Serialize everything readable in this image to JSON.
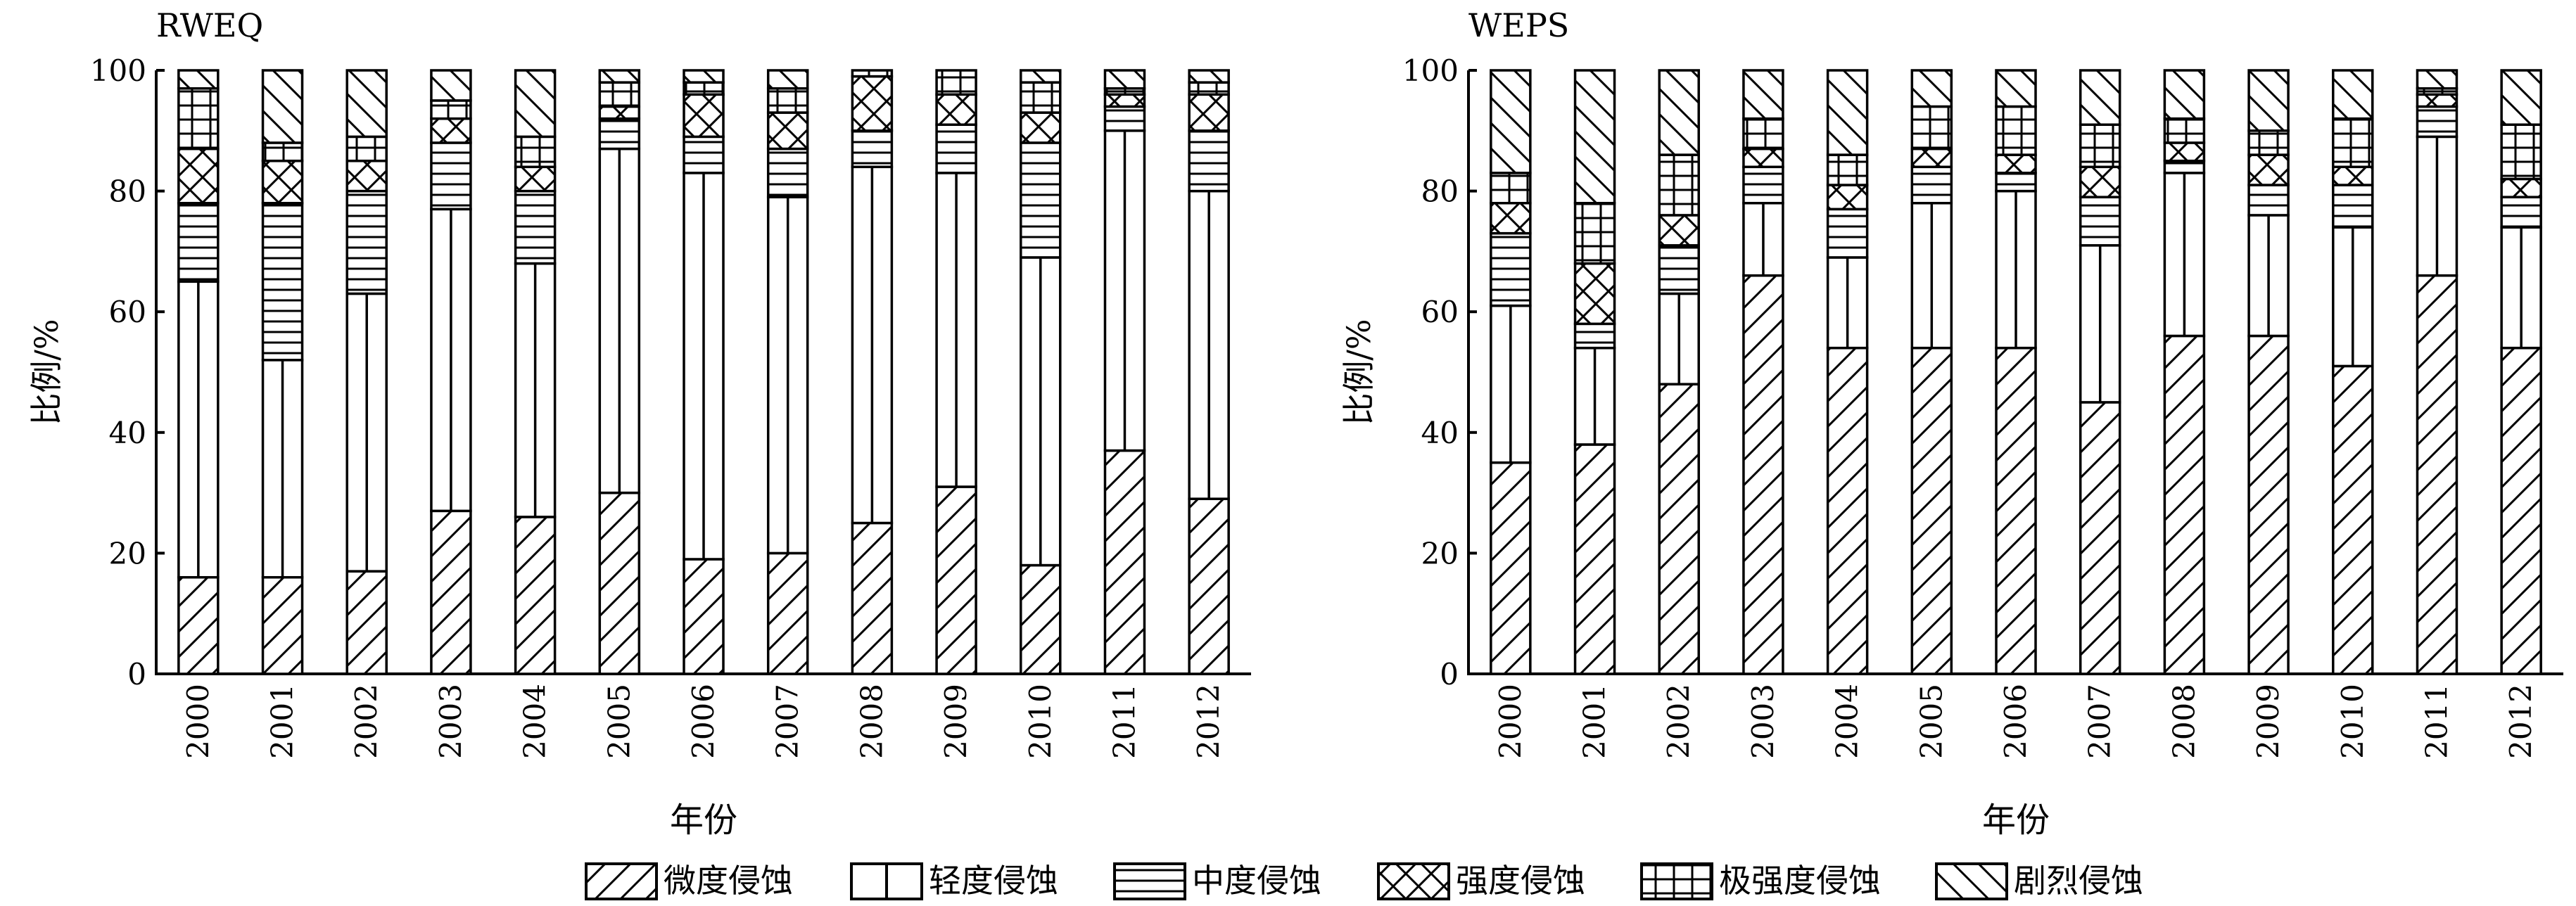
{
  "categories_note": "",
  "legend_entries": [
    {
      "name": "微度侵蚀",
      "pattern": "diag-fwd"
    },
    {
      "name": "轻度侵蚀",
      "pattern": "vline"
    },
    {
      "name": "中度侵蚀",
      "pattern": "hlines"
    },
    {
      "name": "强度侵蚀",
      "pattern": "cross-x"
    },
    {
      "name": "极强度侵蚀",
      "pattern": "grid-plus"
    },
    {
      "name": "剧烈侵蚀",
      "pattern": "diag-back"
    }
  ],
  "chart_data": [
    {
      "type": "bar",
      "stacked": true,
      "title": "RWEQ",
      "xlabel": "年份",
      "ylabel": "比例/%",
      "ylim": [
        0,
        100
      ],
      "yticks": [
        "0",
        "20",
        "40",
        "60",
        "80",
        "100"
      ],
      "categories": [
        "2000",
        "2001",
        "2002",
        "2003",
        "2004",
        "2005",
        "2006",
        "2007",
        "2008",
        "2009",
        "2010",
        "2011",
        "2012"
      ],
      "series": [
        {
          "name": "微度侵蚀",
          "values": [
            16,
            16,
            17,
            27,
            26,
            30,
            19,
            20,
            25,
            31,
            18,
            37,
            29
          ]
        },
        {
          "name": "轻度侵蚀",
          "values": [
            49,
            36,
            46,
            50,
            42,
            57,
            64,
            59,
            59,
            52,
            51,
            53,
            51
          ]
        },
        {
          "name": "中度侵蚀",
          "values": [
            13,
            26,
            17,
            11,
            12,
            5,
            6,
            8,
            6,
            8,
            19,
            4,
            10
          ]
        },
        {
          "name": "强度侵蚀",
          "values": [
            9,
            7,
            5,
            4,
            4,
            2,
            7,
            6,
            9,
            5,
            5,
            2,
            6
          ]
        },
        {
          "name": "极强度侵蚀",
          "values": [
            10,
            3,
            4,
            3,
            5,
            4,
            2,
            4,
            1,
            4,
            5,
            1,
            2
          ]
        },
        {
          "name": "剧烈侵蚀",
          "values": [
            3,
            12,
            11,
            5,
            11,
            2,
            2,
            3,
            0,
            0,
            2,
            3,
            2
          ]
        }
      ]
    },
    {
      "type": "bar",
      "stacked": true,
      "title": "WEPS",
      "xlabel": "年份",
      "ylabel": "比例/%",
      "ylim": [
        0,
        100
      ],
      "yticks": [
        "0",
        "20",
        "40",
        "60",
        "80",
        "100"
      ],
      "categories": [
        "2000",
        "2001",
        "2002",
        "2003",
        "2004",
        "2005",
        "2006",
        "2007",
        "2008",
        "2009",
        "2010",
        "2011",
        "2012"
      ],
      "series": [
        {
          "name": "微度侵蚀",
          "values": [
            35,
            38,
            48,
            66,
            54,
            54,
            54,
            45,
            56,
            56,
            51,
            66,
            54
          ]
        },
        {
          "name": "轻度侵蚀",
          "values": [
            26,
            16,
            15,
            12,
            15,
            24,
            26,
            26,
            27,
            20,
            23,
            23,
            20
          ]
        },
        {
          "name": "中度侵蚀",
          "values": [
            12,
            4,
            8,
            6,
            8,
            6,
            3,
            8,
            2,
            5,
            7,
            5,
            5
          ]
        },
        {
          "name": "强度侵蚀",
          "values": [
            5,
            10,
            5,
            3,
            4,
            3,
            3,
            5,
            3,
            5,
            3,
            2,
            3
          ]
        },
        {
          "name": "极强度侵蚀",
          "values": [
            5,
            10,
            10,
            5,
            5,
            7,
            8,
            7,
            4,
            4,
            8,
            1,
            9
          ]
        },
        {
          "name": "剧烈侵蚀",
          "values": [
            17,
            22,
            14,
            8,
            14,
            6,
            6,
            9,
            8,
            10,
            8,
            3,
            9
          ]
        }
      ]
    }
  ]
}
